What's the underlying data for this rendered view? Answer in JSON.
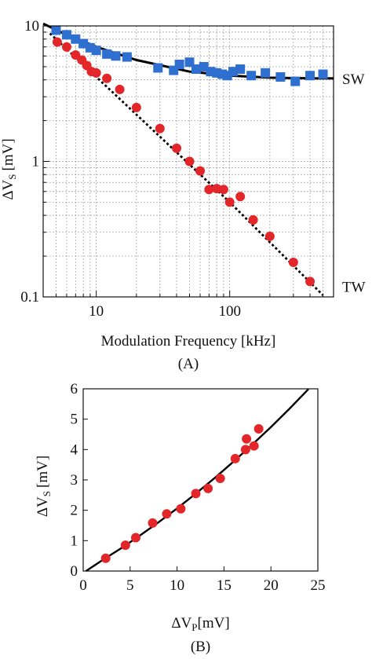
{
  "chart_data": [
    {
      "type": "scatter",
      "panel_label": "(A)",
      "xlabel": "Modulation Frequency [kHz]",
      "ylabel_main": "ΔV",
      "ylabel_sub": "S",
      "ylabel_unit": "[mV]",
      "xscale": "log",
      "yscale": "log",
      "xlim": [
        4,
        600
      ],
      "ylim": [
        0.1,
        10
      ],
      "grid": true,
      "x_ticks": [
        {
          "value": 10,
          "label": "10"
        },
        {
          "value": 100,
          "label": "100"
        }
      ],
      "y_ticks": [
        {
          "value": 0.1,
          "label": "0.1"
        },
        {
          "value": 1,
          "label": "1"
        },
        {
          "value": 10,
          "label": "10"
        }
      ],
      "series": [
        {
          "name": "SW",
          "marker": "square",
          "color": "#2f6fcf",
          "points": [
            [
              5,
              9.3
            ],
            [
              6,
              8.6
            ],
            [
              7,
              8.0
            ],
            [
              8,
              7.4
            ],
            [
              9,
              6.9
            ],
            [
              10,
              6.6
            ],
            [
              12,
              6.2
            ],
            [
              14,
              6.0
            ],
            [
              17,
              5.9
            ],
            [
              29,
              4.9
            ],
            [
              38,
              4.7
            ],
            [
              42,
              5.2
            ],
            [
              50,
              5.4
            ],
            [
              56,
              4.8
            ],
            [
              64,
              5.0
            ],
            [
              72,
              4.6
            ],
            [
              80,
              4.5
            ],
            [
              88,
              4.4
            ],
            [
              96,
              4.3
            ],
            [
              106,
              4.6
            ],
            [
              120,
              4.8
            ],
            [
              145,
              4.3
            ],
            [
              185,
              4.5
            ],
            [
              240,
              4.2
            ],
            [
              310,
              3.9
            ],
            [
              400,
              4.3
            ],
            [
              500,
              4.4
            ]
          ],
          "fit_points": [
            [
              4,
              10.4
            ],
            [
              6,
              8.6
            ],
            [
              10,
              7.0
            ],
            [
              20,
              5.6
            ],
            [
              50,
              4.6
            ],
            [
              100,
              4.3
            ],
            [
              200,
              4.15
            ],
            [
              400,
              4.1
            ],
            [
              600,
              4.1
            ]
          ]
        },
        {
          "name": "TW",
          "marker": "circle",
          "color": "#e3262a",
          "points": [
            [
              5.1,
              7.6
            ],
            [
              6,
              7.0
            ],
            [
              7,
              6.1
            ],
            [
              7.8,
              5.6
            ],
            [
              8.5,
              5.1
            ],
            [
              9.2,
              4.6
            ],
            [
              10,
              4.5
            ],
            [
              12,
              4.1
            ],
            [
              15,
              3.4
            ],
            [
              20,
              2.5
            ],
            [
              30,
              1.75
            ],
            [
              40,
              1.25
            ],
            [
              50,
              1.0
            ],
            [
              60,
              0.85
            ],
            [
              70,
              0.62
            ],
            [
              80,
              0.63
            ],
            [
              90,
              0.62
            ],
            [
              100,
              0.5
            ],
            [
              120,
              0.55
            ],
            [
              150,
              0.37
            ],
            [
              200,
              0.28
            ],
            [
              300,
              0.18
            ],
            [
              400,
              0.13
            ]
          ],
          "fit_points": [
            [
              4.5,
              8.8
            ],
            [
              100,
              0.5
            ],
            [
              500,
              0.103
            ]
          ]
        }
      ],
      "annotations": [
        {
          "text": "SW",
          "x": 600,
          "y": 4.1
        },
        {
          "text": "TW",
          "x": 600,
          "y": 0.12
        }
      ]
    },
    {
      "type": "scatter",
      "panel_label": "(B)",
      "xlabel_main": "ΔV",
      "xlabel_sub": "P",
      "xlabel_unit": "[mV]",
      "ylabel_main": "ΔV",
      "ylabel_sub": "S",
      "ylabel_unit": "[mV]",
      "xlim": [
        0,
        25
      ],
      "ylim": [
        0,
        6
      ],
      "grid": false,
      "x_ticks": [
        {
          "value": 0,
          "label": "0"
        },
        {
          "value": 5,
          "label": "5"
        },
        {
          "value": 10,
          "label": "10"
        },
        {
          "value": 15,
          "label": "15"
        },
        {
          "value": 20,
          "label": "20"
        },
        {
          "value": 25,
          "label": "25"
        }
      ],
      "y_ticks": [
        {
          "value": 0,
          "label": "0"
        },
        {
          "value": 1,
          "label": "1"
        },
        {
          "value": 2,
          "label": "2"
        },
        {
          "value": 3,
          "label": "3"
        },
        {
          "value": 4,
          "label": "4"
        },
        {
          "value": 5,
          "label": "5"
        },
        {
          "value": 6,
          "label": "6"
        }
      ],
      "series": [
        {
          "marker": "circle",
          "color": "#e3262a",
          "points": [
            [
              2.4,
              0.42
            ],
            [
              4.5,
              0.85
            ],
            [
              5.6,
              1.1
            ],
            [
              7.4,
              1.58
            ],
            [
              8.9,
              1.88
            ],
            [
              10.4,
              2.05
            ],
            [
              12,
              2.55
            ],
            [
              13.3,
              2.72
            ],
            [
              14.6,
              3.05
            ],
            [
              16.2,
              3.7
            ],
            [
              17.3,
              4.0
            ],
            [
              17.4,
              4.35
            ],
            [
              18.2,
              4.12
            ],
            [
              18.7,
              4.68
            ]
          ],
          "fit_points": [
            [
              0.3,
              0
            ],
            [
              2,
              0.35
            ],
            [
              4,
              0.74
            ],
            [
              6,
              1.16
            ],
            [
              8,
              1.6
            ],
            [
              10,
              2.06
            ],
            [
              12,
              2.55
            ],
            [
              14,
              3.06
            ],
            [
              16,
              3.6
            ],
            [
              18,
              4.16
            ],
            [
              20,
              4.74
            ],
            [
              22,
              5.35
            ],
            [
              24,
              5.99
            ]
          ]
        }
      ]
    }
  ]
}
